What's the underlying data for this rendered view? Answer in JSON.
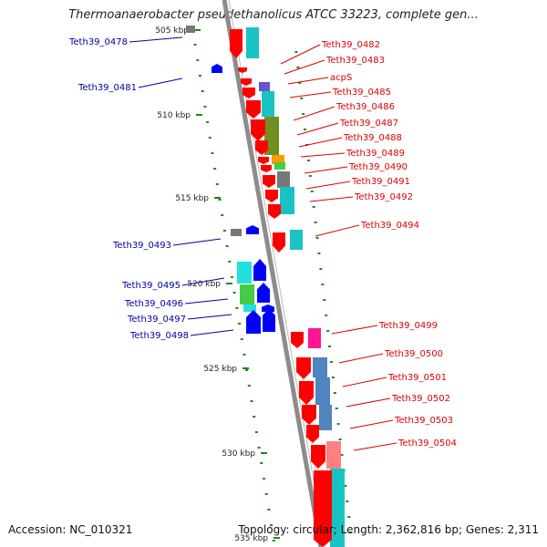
{
  "title": "Thermoanaerobacter pseudethanolicus ATCC 33223, complete gen...",
  "footer": {
    "accession": "Accession: NC_010321",
    "topology": "Topology: circular; Length: 2,362,816 bp; Genes: 2,311"
  },
  "colors": {
    "forward": "#ff0000",
    "reverse": "#0000ff",
    "axis": "#8c8c8c",
    "tick": "#1a8c1a",
    "cog_cyan": "#22dddd",
    "cog_olive": "#6f8f1e",
    "cog_orange": "#ff9900",
    "cog_gray": "#777777",
    "cog_green": "#44cc44",
    "cog_magenta": "#ff1493",
    "cog_steel": "#4f84bf",
    "cog_pink": "#ff8080",
    "cog_purple": "#6655cc"
  },
  "ruler": [
    "505 kbp",
    "510 kbp",
    "515 kbp",
    "520 kbp",
    "525 kbp",
    "530 kbp",
    "535 kbp"
  ],
  "genes_forward": [
    "Teth39_0482",
    "Teth39_0483",
    "acpS",
    "Teth39_0485",
    "Teth39_0486",
    "Teth39_0487",
    "Teth39_0488",
    "Teth39_0489",
    "Teth39_0490",
    "Teth39_0491",
    "Teth39_0492",
    "Teth39_0494",
    "Teth39_0499",
    "Teth39_0500",
    "Teth39_0501",
    "Teth39_0502",
    "Teth39_0503",
    "Teth39_0504"
  ],
  "genes_reverse": [
    "Teth39_0478",
    "Teth39_0481",
    "Teth39_0493",
    "Teth39_0495",
    "Teth39_0496",
    "Teth39_0497",
    "Teth39_0498"
  ]
}
